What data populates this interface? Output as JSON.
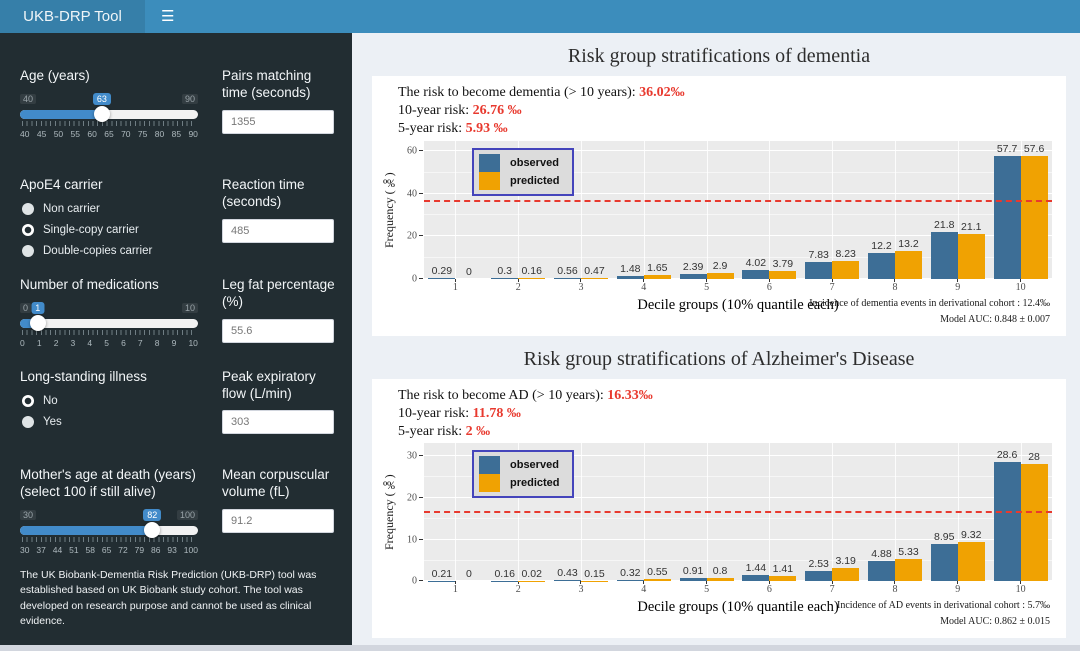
{
  "header": {
    "title": "UKB-DRP Tool",
    "menu_icon": "☰"
  },
  "colors": {
    "header": "#3c8dbc",
    "logo": "#367fa9",
    "sidebar": "#222d32",
    "content_bg": "#ecf0f5",
    "slider_blue": "#428bca",
    "observed": "#3d6e96",
    "predicted": "#f0a202",
    "ref_line": "#e8392e",
    "legend_border": "#4444bb"
  },
  "sidebar": {
    "age": {
      "label": "Age (years)",
      "min": 40,
      "max": 90,
      "value": 63,
      "ticks": [
        "40",
        "45",
        "50",
        "55",
        "60",
        "65",
        "70",
        "75",
        "80",
        "85",
        "90"
      ]
    },
    "pairs": {
      "label": "Pairs matching time (seconds)",
      "value": "1355"
    },
    "apoe4": {
      "label": "ApoE4 carrier",
      "selected": 1,
      "options": [
        "Non carrier",
        "Single-copy carrier",
        "Double-copies carrier"
      ]
    },
    "reaction": {
      "label": "Reaction time (seconds)",
      "value": "485"
    },
    "medications": {
      "label": "Number of medications",
      "min": 0,
      "max": 10,
      "value": 1,
      "ticks": [
        "0",
        "1",
        "2",
        "3",
        "4",
        "5",
        "6",
        "7",
        "8",
        "9",
        "10"
      ]
    },
    "legfat": {
      "label": "Leg fat percentage (%)",
      "value": "55.6"
    },
    "illness": {
      "label": "Long-standing illness",
      "selected": 0,
      "options": [
        "No",
        "Yes"
      ]
    },
    "pef": {
      "label": "Peak expiratory flow (L/min)",
      "value": "303"
    },
    "mother": {
      "label": "Mother's age at death (years) (select 100 if still alive)",
      "min": 30,
      "max": 100,
      "value": 82,
      "ticks": [
        "30",
        "37",
        "44",
        "51",
        "58",
        "65",
        "72",
        "79",
        "86",
        "93",
        "100"
      ]
    },
    "mcv": {
      "label": "Mean corpuscular volume (fL)",
      "value": "91.2"
    },
    "footer": "The UK Biobank-Dementia Risk Prediction (UKB-DRP) tool was established based on UK Biobank study cohort. The tool was developed on research purpose and cannot be used as clinical evidence."
  },
  "chart_data": [
    {
      "type": "bar",
      "title": "Risk group stratifications of dementia",
      "risk_lines": [
        {
          "label": "The risk to become dementia (> 10 years): ",
          "value": "36.02‰"
        },
        {
          "label": "10-year risk: ",
          "value": "26.76 ‰"
        },
        {
          "label": "5-year risk: ",
          "value": "5.93 ‰"
        }
      ],
      "categories": [
        "1",
        "2",
        "3",
        "4",
        "5",
        "6",
        "7",
        "8",
        "9",
        "10"
      ],
      "series": [
        {
          "name": "observed",
          "color": "#3d6e96",
          "values": [
            0.29,
            0.3,
            0.56,
            1.48,
            2.39,
            4.02,
            7.83,
            12.2,
            21.8,
            57.7
          ],
          "labels": [
            "0.29",
            "0.3",
            "0.56",
            "1.48",
            "2.39",
            "4.02",
            "7.83",
            "12.2",
            "21.8",
            "57.7"
          ]
        },
        {
          "name": "predicted",
          "color": "#f0a202",
          "values": [
            0,
            0.16,
            0.47,
            1.65,
            2.9,
            3.79,
            8.23,
            13.2,
            21.1,
            57.6
          ],
          "labels": [
            "0",
            "0.16",
            "0.47",
            "1.65",
            "2.9",
            "3.79",
            "8.23",
            "13.2",
            "21.1",
            "57.6"
          ]
        }
      ],
      "ref_line": 36.02,
      "yticks": [
        0,
        20,
        40,
        60
      ],
      "ylim": [
        0,
        65
      ],
      "grid": true,
      "legend_position": "top-left",
      "xlabel": "Decile groups (10% quantile each)",
      "ylabel": "Frequency (‰)",
      "annotations": [
        "Incidence of dementia events in derivational cohort : 12.4‰",
        "Model AUC: 0.848 ± 0.007"
      ]
    },
    {
      "type": "bar",
      "title": "Risk group stratifications of Alzheimer's Disease",
      "risk_lines": [
        {
          "label": "The risk to become AD (> 10 years): ",
          "value": "16.33‰"
        },
        {
          "label": "10-year risk: ",
          "value": "11.78 ‰"
        },
        {
          "label": "5-year risk: ",
          "value": "2 ‰"
        }
      ],
      "categories": [
        "1",
        "2",
        "3",
        "4",
        "5",
        "6",
        "7",
        "8",
        "9",
        "10"
      ],
      "series": [
        {
          "name": "observed",
          "color": "#3d6e96",
          "values": [
            0.21,
            0.16,
            0.43,
            0.32,
            0.91,
            1.44,
            2.53,
            4.88,
            8.95,
            28.6
          ],
          "labels": [
            "0.21",
            "0.16",
            "0.43",
            "0.32",
            "0.91",
            "1.44",
            "2.53",
            "4.88",
            "8.95",
            "28.6"
          ]
        },
        {
          "name": "predicted",
          "color": "#f0a202",
          "values": [
            0,
            0.02,
            0.15,
            0.55,
            0.8,
            1.41,
            3.19,
            5.33,
            9.32,
            28
          ],
          "labels": [
            "0",
            "0.02",
            "0.15",
            "0.55",
            "0.8",
            "1.41",
            "3.19",
            "5.33",
            "9.32",
            "28"
          ]
        }
      ],
      "ref_line": 16.33,
      "yticks": [
        0,
        10,
        20,
        30
      ],
      "ylim": [
        0,
        33
      ],
      "grid": true,
      "legend_position": "top-left",
      "xlabel": "Decile groups (10% quantile each)",
      "ylabel": "Frequency (‰)",
      "annotations": [
        "Incidence of AD events in derivational cohort : 5.7‰",
        "Model AUC: 0.862 ± 0.015"
      ]
    }
  ]
}
